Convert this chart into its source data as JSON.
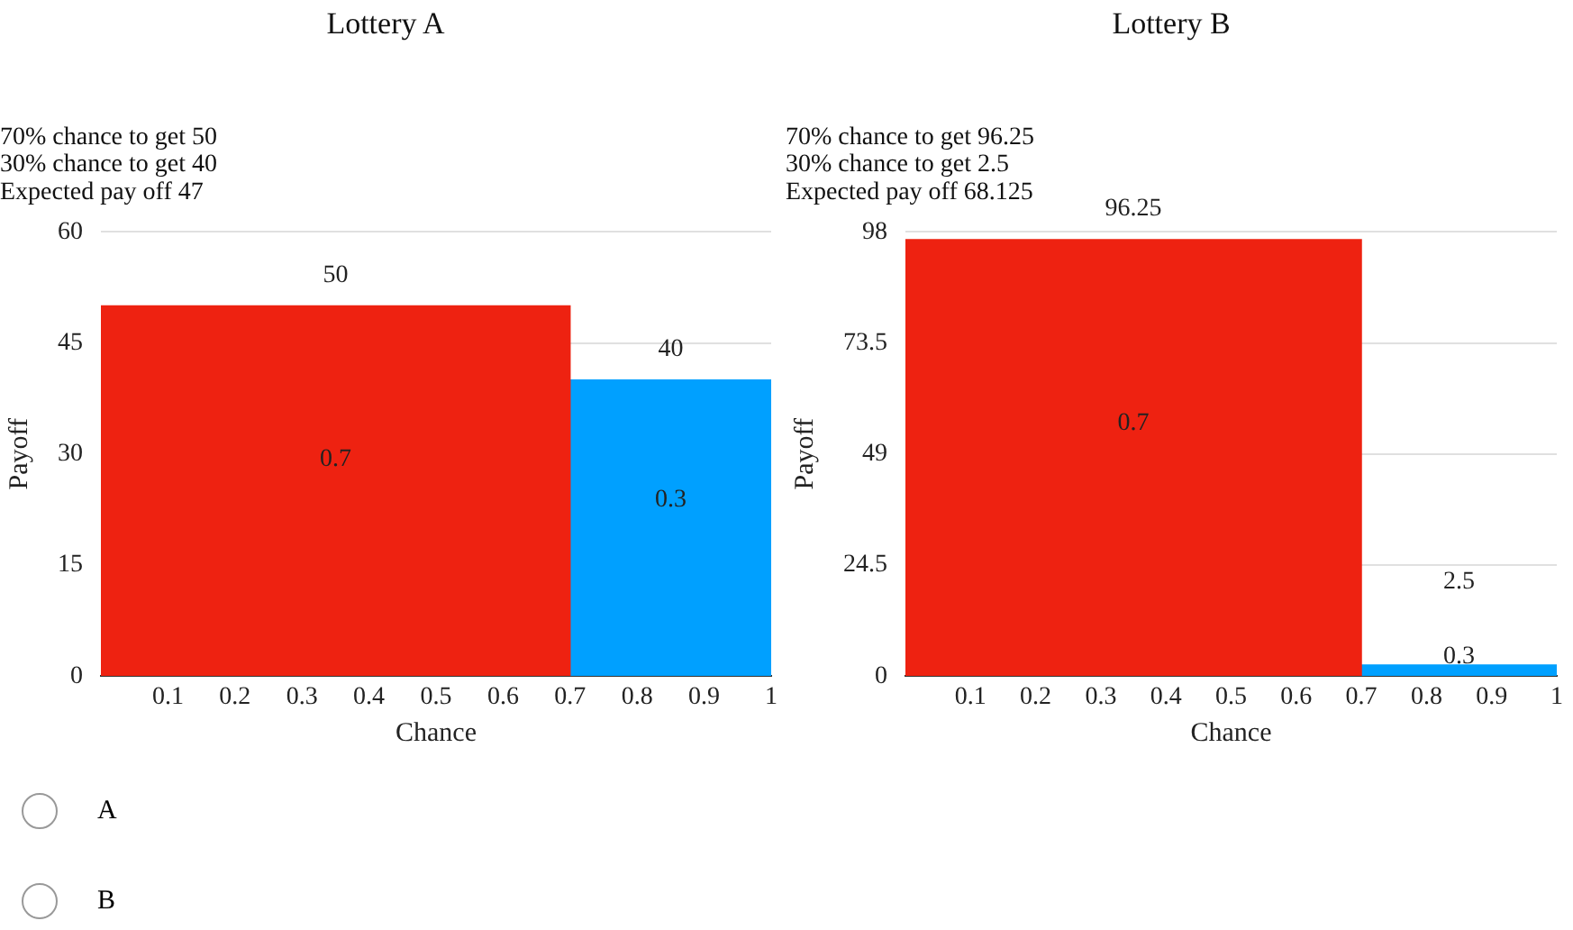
{
  "chart_data": [
    {
      "type": "histogram",
      "title": "Lottery A",
      "subtitle": "70% chance to get 50\n30% chance to get 40\nExpected pay off 47",
      "xlabel": "Chance",
      "ylabel": "Payoff",
      "bins": [
        0,
        0.7,
        1
      ],
      "values": [
        50,
        40
      ],
      "colors": [
        "#ee2211",
        "#00a0ff"
      ],
      "xlim": [
        0,
        1
      ],
      "xticks": [
        0.1,
        0.2,
        0.3,
        0.4,
        0.5,
        0.6,
        0.7,
        0.8,
        0.9,
        1
      ],
      "ylim": [
        0,
        60
      ],
      "yticks": [
        0,
        15,
        30,
        45,
        60
      ],
      "grid": "y",
      "data_labels": true,
      "annotations": [
        "0.7",
        "0.3"
      ]
    },
    {
      "type": "histogram",
      "title": "Lottery B",
      "subtitle": "70% chance to get 96.25\n30% chance to get 2.5\nExpected pay off 68.125",
      "xlabel": "Chance",
      "ylabel": "Payoff",
      "bins": [
        0,
        0.7,
        1
      ],
      "values": [
        96.25,
        2.5
      ],
      "colors": [
        "#ee2211",
        "#00a0ff"
      ],
      "xlim": [
        0,
        1
      ],
      "xticks": [
        0.1,
        0.2,
        0.3,
        0.4,
        0.5,
        0.6,
        0.7,
        0.8,
        0.9,
        1
      ],
      "ylim": [
        0,
        98
      ],
      "yticks": [
        0,
        24.5,
        49,
        73.5,
        98
      ],
      "grid": "y",
      "data_labels": true,
      "annotations": [
        "0.7",
        "0.3"
      ]
    },
    {
      "type": "other",
      "annotations": [
        "A",
        "B"
      ]
    }
  ]
}
